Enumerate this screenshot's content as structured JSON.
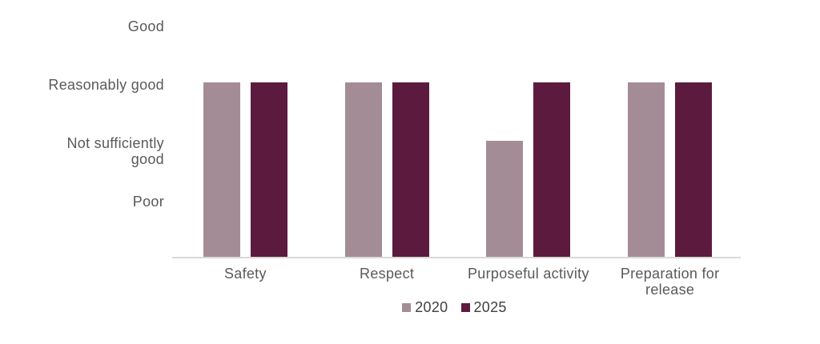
{
  "chart_data": {
    "type": "bar",
    "title": "",
    "categories": [
      "Safety",
      "Respect",
      "Purposeful activity",
      "Preparation for release"
    ],
    "series": [
      {
        "name": "2020",
        "color": "#A48C96",
        "values": [
          3,
          3,
          2,
          3
        ]
      },
      {
        "name": "2025",
        "color": "#5C1B3E",
        "values": [
          3,
          3,
          3,
          3
        ]
      }
    ],
    "y_axis": {
      "min": 0,
      "max": 4,
      "ticks": [
        {
          "value": 4,
          "label": "Good"
        },
        {
          "value": 3,
          "label": "Reasonably good"
        },
        {
          "value": 2,
          "label": "Not sufficiently good"
        },
        {
          "value": 1,
          "label": "Poor"
        }
      ]
    },
    "legend": {
      "position": "bottom",
      "entries": [
        "2020",
        "2025"
      ]
    },
    "grid": false,
    "axis_line_color": "#D9D9D9",
    "text_color": "#595959",
    "legend_text_color": "#404040",
    "background": "#FFFFFF"
  }
}
